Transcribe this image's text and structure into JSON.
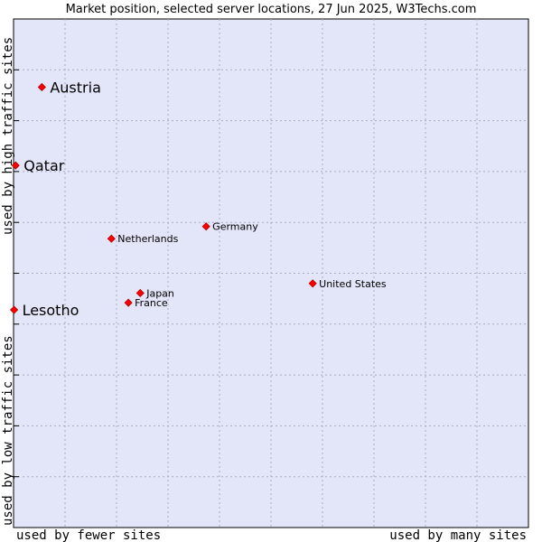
{
  "chart_data": {
    "type": "scatter",
    "title": "Market position, selected server locations, 27 Jun 2025, W3Techs.com",
    "xlabel_low": "used by fewer sites",
    "xlabel_high": "used by many sites",
    "ylabel_low": "used by low traffic sites",
    "ylabel_high": "used by high traffic sites",
    "xlim": [
      0,
      100
    ],
    "ylim": [
      0,
      100
    ],
    "grid": true,
    "colors": {
      "plot_bg": "#e3e5f8",
      "grid": "#a9abc0",
      "marker": "#ff0000",
      "marker_edge": "#b00000"
    },
    "points": [
      {
        "name": "Austria",
        "x": 5.5,
        "y": 86.6,
        "emphasis": true
      },
      {
        "name": "Qatar",
        "x": 0.4,
        "y": 71.2,
        "emphasis": true
      },
      {
        "name": "Germany",
        "x": 37.4,
        "y": 59.2,
        "emphasis": false
      },
      {
        "name": "Netherlands",
        "x": 19.0,
        "y": 56.8,
        "emphasis": false
      },
      {
        "name": "United States",
        "x": 58.1,
        "y": 48.0,
        "emphasis": false
      },
      {
        "name": "Japan",
        "x": 24.6,
        "y": 46.1,
        "emphasis": false
      },
      {
        "name": "France",
        "x": 22.3,
        "y": 44.2,
        "emphasis": false
      },
      {
        "name": "Lesotho",
        "x": 0.1,
        "y": 42.8,
        "emphasis": true
      }
    ]
  }
}
